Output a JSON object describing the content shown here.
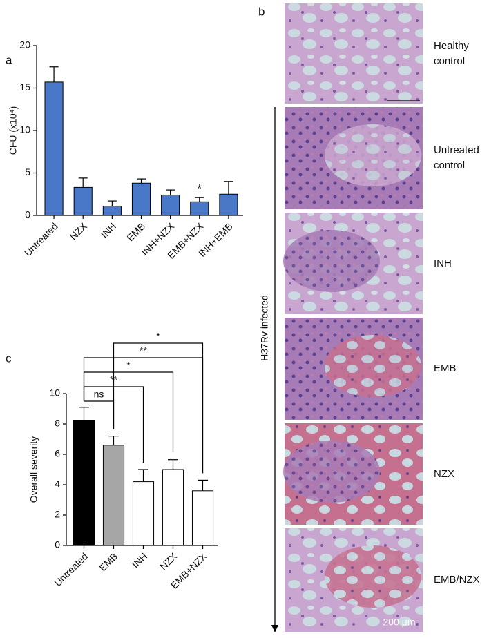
{
  "chart_data": [
    {
      "type": "bar",
      "panel": "a",
      "y_label": "CFU (x10⁴)",
      "categories": [
        "Untreated",
        "NZX",
        "INH",
        "EMB",
        "INH+NZX",
        "EMB+NZX",
        "INH+EMB"
      ],
      "values": [
        15.7,
        3.3,
        1.1,
        3.8,
        2.4,
        1.6,
        2.5
      ],
      "errors": [
        1.8,
        1.1,
        0.6,
        0.5,
        0.6,
        0.5,
        1.5
      ],
      "color": "#4a78c8",
      "ylim": [
        0,
        20
      ],
      "yticks": [
        0,
        5,
        10,
        15,
        20
      ],
      "annotations": [
        {
          "category": "EMB+NZX",
          "text": "*"
        }
      ]
    },
    {
      "type": "bar",
      "panel": "c",
      "y_label": "Overall severity",
      "categories": [
        "Untreated",
        "EMB",
        "INH",
        "NZX",
        "EMB+NZX"
      ],
      "values": [
        8.25,
        6.6,
        4.2,
        5.0,
        3.6
      ],
      "errors": [
        0.85,
        0.6,
        0.8,
        0.65,
        0.7
      ],
      "colors": [
        "#000000",
        "#a6a6a6",
        "#ffffff",
        "#ffffff",
        "#ffffff"
      ],
      "ylim": [
        0,
        10
      ],
      "yticks": [
        0,
        2,
        4,
        6,
        8,
        10
      ],
      "brackets": [
        {
          "from": "EMB",
          "to": "EMB+NZX",
          "label": "*"
        },
        {
          "from": "Untreated",
          "to": "EMB+NZX",
          "label": "**"
        },
        {
          "from": "Untreated",
          "to": "NZX",
          "label": "*"
        },
        {
          "from": "Untreated",
          "to": "INH",
          "label": "**"
        },
        {
          "from": "Untreated",
          "to": "EMB",
          "label": "ns"
        }
      ]
    }
  ],
  "histology": {
    "panel": "b",
    "axis_label": "H37Rv infected",
    "rows": [
      "Healthy control",
      "Untreated control",
      "INH",
      "EMB",
      "NZX",
      "EMB/NZX"
    ],
    "scale_bar": "200 μm"
  }
}
